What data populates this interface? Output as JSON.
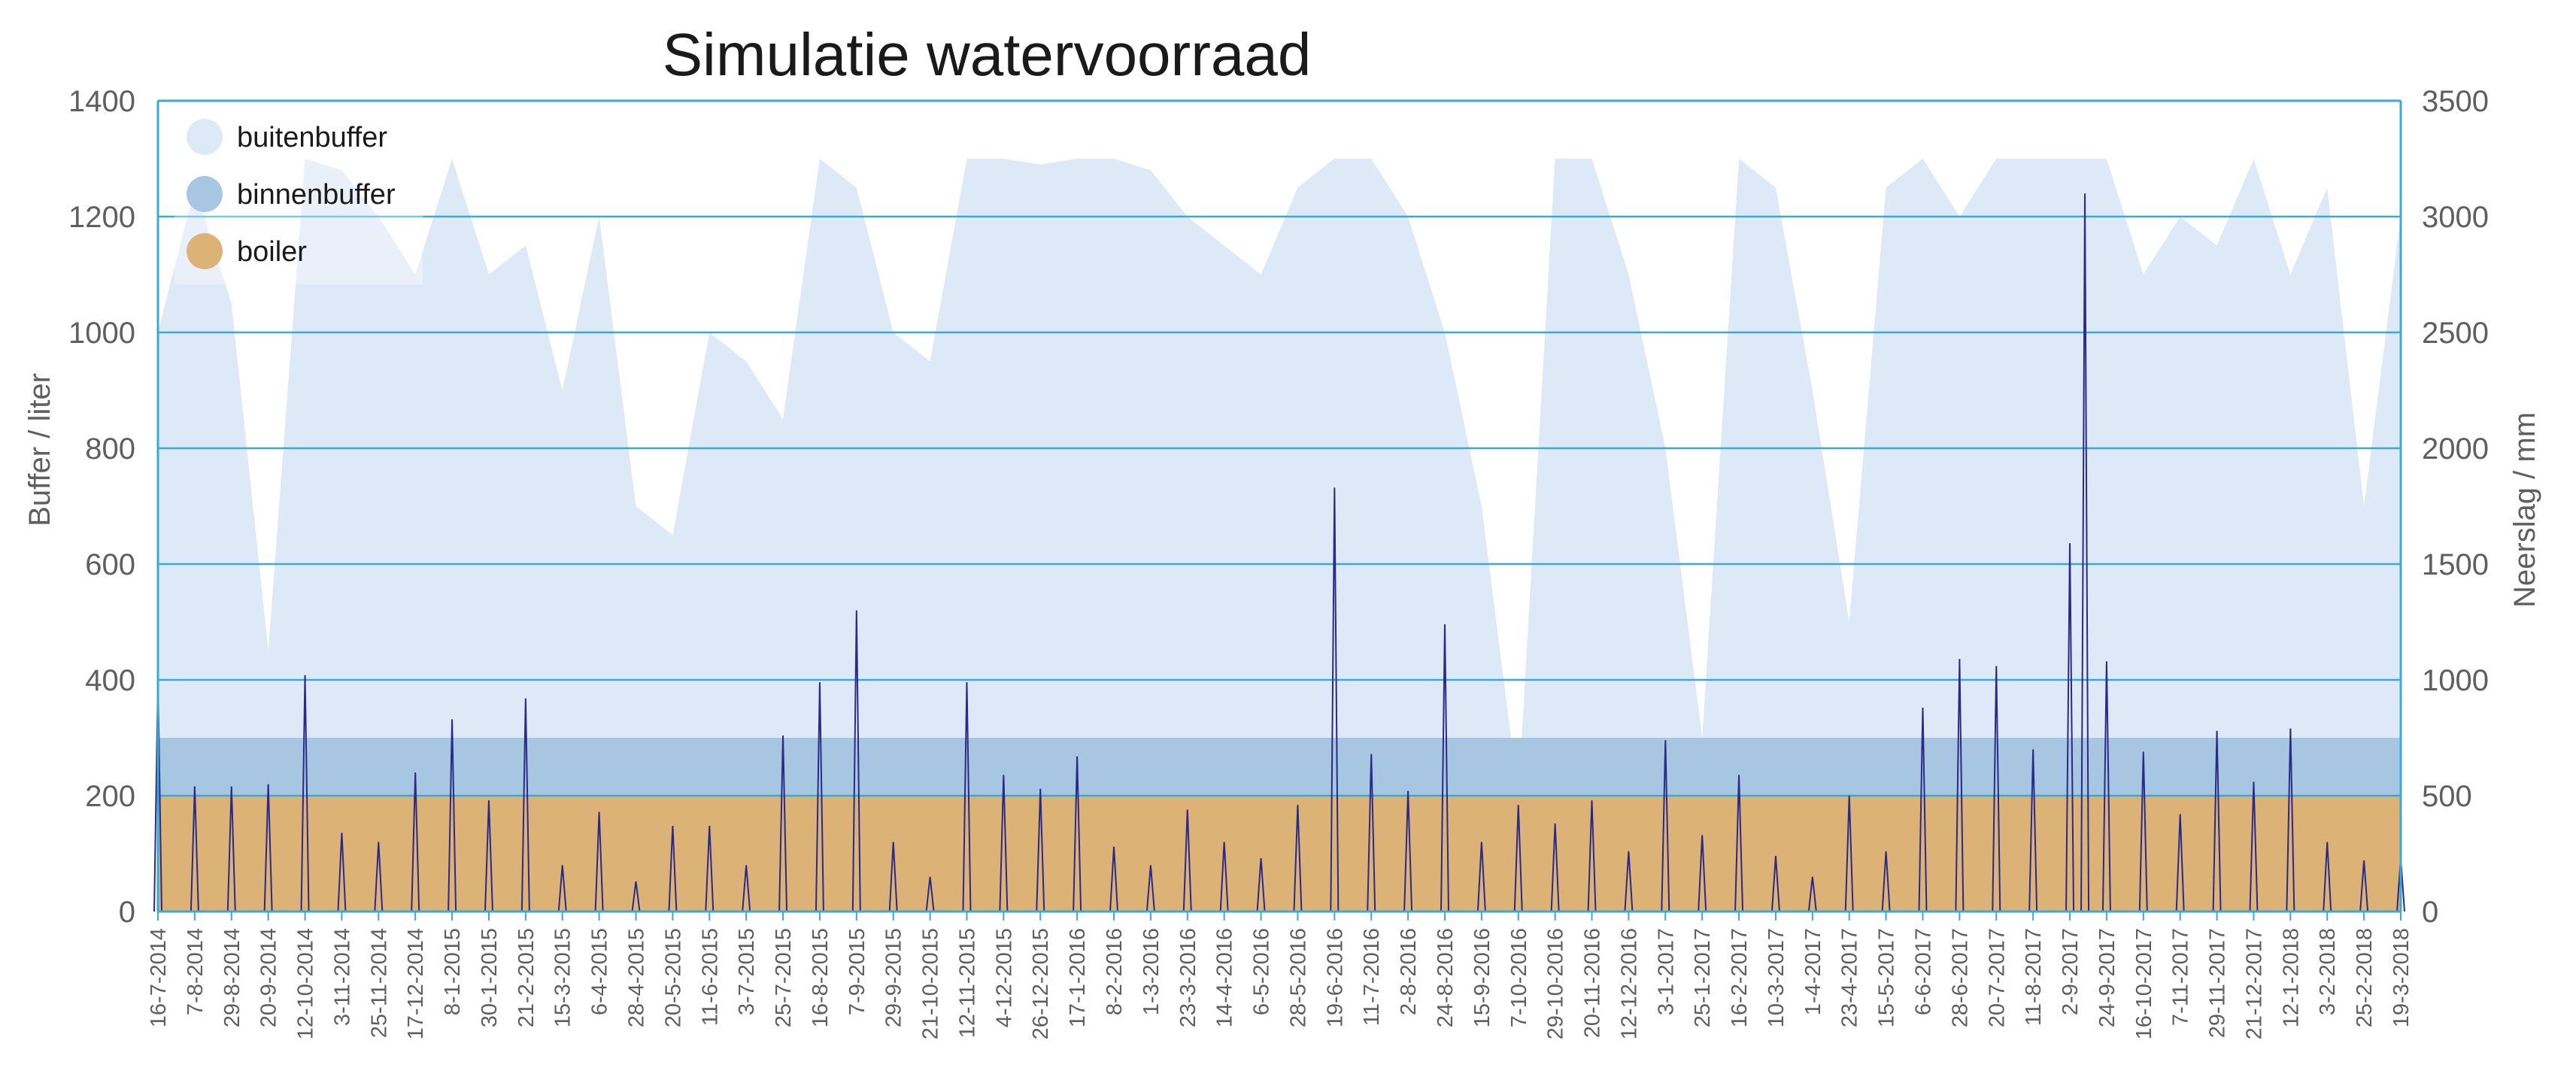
{
  "chart_data": {
    "type": "area",
    "title": "Simulatie watervoorraad",
    "ylabel_left": "Buffer / liter",
    "ylabel_right": "Neerslag / mm",
    "ylim_left": [
      0,
      1400
    ],
    "yticks_left": [
      "0",
      "200",
      "400",
      "600",
      "800",
      "1000",
      "1200",
      "1400"
    ],
    "ylim_right": [
      0,
      3500
    ],
    "yticks_right": [
      "0",
      "500",
      "1000",
      "1500",
      "2000",
      "2500",
      "3000",
      "3500"
    ],
    "grid": "horizontal",
    "legend_position": "top-left",
    "legend": [
      {
        "label": "buitenbuffer",
        "color": "#dde9f6"
      },
      {
        "label": "binnenbuffer",
        "color": "#a7c6e2"
      },
      {
        "label": "boiler",
        "color": "#ddb277"
      }
    ],
    "colors": {
      "axis": "#3aa9d3",
      "gridline": "#3aa9d3",
      "precipitation": "#2b2a86",
      "buitenbuffer": "#dde9f6",
      "binnenbuffer": "#a7c6e2",
      "boiler": "#ddb277"
    },
    "x_tick_labels": [
      "16-7-2014",
      "7-8-2014",
      "29-8-2014",
      "20-9-2014",
      "12-10-2014",
      "3-11-2014",
      "25-11-2014",
      "17-12-2014",
      "8-1-2015",
      "30-1-2015",
      "21-2-2015",
      "15-3-2015",
      "6-4-2015",
      "28-4-2015",
      "20-5-2015",
      "11-6-2015",
      "3-7-2015",
      "25-7-2015",
      "16-8-2015",
      "7-9-2015",
      "29-9-2015",
      "21-10-2015",
      "12-11-2015",
      "4-12-2015",
      "26-12-2015",
      "17-1-2016",
      "8-2-2016",
      "1-3-2016",
      "23-3-2016",
      "14-4-2016",
      "6-5-2016",
      "28-5-2016",
      "19-6-2016",
      "11-7-2016",
      "2-8-2016",
      "24-8-2016",
      "15-9-2016",
      "7-10-2016",
      "29-10-2016",
      "20-11-2016",
      "12-12-2016",
      "3-1-2017",
      "25-1-2017",
      "16-2-2017",
      "10-3-2017",
      "1-4-2017",
      "23-4-2017",
      "15-5-2017",
      "6-6-2017",
      "28-6-2017",
      "20-7-2017",
      "11-8-2017",
      "2-9-2017",
      "24-9-2017",
      "16-10-2017",
      "7-11-2017",
      "29-11-2017",
      "21-12-2017",
      "12-1-2018",
      "3-2-2018",
      "25-2-2018",
      "19-3-2018"
    ],
    "series": [
      {
        "name": "buitenbuffer",
        "units": "liter",
        "axis": "left",
        "x": [
          "16-7-2014",
          "7-8-2014",
          "29-8-2014",
          "20-9-2014",
          "12-10-2014",
          "3-11-2014",
          "25-11-2014",
          "17-12-2014",
          "8-1-2015",
          "30-1-2015",
          "21-2-2015",
          "15-3-2015",
          "6-4-2015",
          "28-4-2015",
          "20-5-2015",
          "11-6-2015",
          "3-7-2015",
          "25-7-2015",
          "16-8-2015",
          "7-9-2015",
          "29-9-2015",
          "21-10-2015",
          "12-11-2015",
          "4-12-2015",
          "26-12-2015",
          "17-1-2016",
          "8-2-2016",
          "1-3-2016",
          "23-3-2016",
          "14-4-2016",
          "6-5-2016",
          "28-5-2016",
          "19-6-2016",
          "11-7-2016",
          "2-8-2016",
          "24-8-2016",
          "15-9-2016",
          "7-10-2016",
          "29-10-2016",
          "20-11-2016",
          "12-12-2016",
          "3-1-2017",
          "25-1-2017",
          "16-2-2017",
          "10-3-2017",
          "1-4-2017",
          "23-4-2017",
          "15-5-2017",
          "6-6-2017",
          "28-6-2017",
          "20-7-2017",
          "11-8-2017",
          "2-9-2017",
          "24-9-2017",
          "16-10-2017",
          "7-11-2017",
          "29-11-2017",
          "21-12-2017",
          "12-1-2018",
          "3-2-2018",
          "25-2-2018",
          "19-3-2018"
        ],
        "values": [
          1000,
          1250,
          1050,
          450,
          1300,
          1280,
          1200,
          1100,
          1300,
          1100,
          1150,
          900,
          1200,
          700,
          650,
          1000,
          950,
          850,
          1300,
          1250,
          1000,
          950,
          1300,
          1300,
          1290,
          1300,
          1300,
          1280,
          1200,
          1150,
          1100,
          1250,
          1300,
          1300,
          1200,
          1000,
          700,
          200,
          1300,
          1300,
          1100,
          800,
          300,
          1300,
          1250,
          900,
          500,
          1250,
          1300,
          1200,
          1300,
          1300,
          1300,
          1300,
          1100,
          1200,
          1150,
          1300,
          1100,
          1250,
          700,
          1200
        ]
      },
      {
        "name": "binnenbuffer",
        "units": "liter",
        "axis": "left",
        "constant": 300
      },
      {
        "name": "boiler",
        "units": "liter",
        "axis": "left",
        "constant": 200
      },
      {
        "name": "neerslag",
        "units": "mm",
        "axis": "right",
        "peaks": [
          {
            "x": "16-7-2014",
            "value": 1000
          },
          {
            "x": "7-8-2014",
            "value": 540
          },
          {
            "x": "29-8-2014",
            "value": 540
          },
          {
            "x": "20-9-2014",
            "value": 550
          },
          {
            "x": "12-10-2014",
            "value": 1020
          },
          {
            "x": "3-11-2014",
            "value": 340
          },
          {
            "x": "25-11-2014",
            "value": 300
          },
          {
            "x": "17-12-2014",
            "value": 600
          },
          {
            "x": "8-1-2015",
            "value": 830
          },
          {
            "x": "30-1-2015",
            "value": 480
          },
          {
            "x": "21-2-2015",
            "value": 920
          },
          {
            "x": "15-3-2015",
            "value": 200
          },
          {
            "x": "6-4-2015",
            "value": 430
          },
          {
            "x": "28-4-2015",
            "value": 130
          },
          {
            "x": "20-5-2015",
            "value": 370
          },
          {
            "x": "11-6-2015",
            "value": 370
          },
          {
            "x": "3-7-2015",
            "value": 200
          },
          {
            "x": "25-7-2015",
            "value": 760
          },
          {
            "x": "16-8-2015",
            "value": 990
          },
          {
            "x": "7-9-2015",
            "value": 1300
          },
          {
            "x": "29-9-2015",
            "value": 300
          },
          {
            "x": "21-10-2015",
            "value": 150
          },
          {
            "x": "12-11-2015",
            "value": 990
          },
          {
            "x": "4-12-2015",
            "value": 590
          },
          {
            "x": "26-12-2015",
            "value": 530
          },
          {
            "x": "17-1-2016",
            "value": 670
          },
          {
            "x": "8-2-2016",
            "value": 280
          },
          {
            "x": "1-3-2016",
            "value": 200
          },
          {
            "x": "23-3-2016",
            "value": 440
          },
          {
            "x": "14-4-2016",
            "value": 300
          },
          {
            "x": "6-5-2016",
            "value": 230
          },
          {
            "x": "28-5-2016",
            "value": 460
          },
          {
            "x": "19-6-2016",
            "value": 1830
          },
          {
            "x": "11-7-2016",
            "value": 680
          },
          {
            "x": "2-8-2016",
            "value": 520
          },
          {
            "x": "24-8-2016",
            "value": 1240
          },
          {
            "x": "15-9-2016",
            "value": 300
          },
          {
            "x": "7-10-2016",
            "value": 460
          },
          {
            "x": "29-10-2016",
            "value": 380
          },
          {
            "x": "20-11-2016",
            "value": 480
          },
          {
            "x": "12-12-2016",
            "value": 260
          },
          {
            "x": "3-1-2017",
            "value": 740
          },
          {
            "x": "25-1-2017",
            "value": 330
          },
          {
            "x": "16-2-2017",
            "value": 590
          },
          {
            "x": "10-3-2017",
            "value": 240
          },
          {
            "x": "1-4-2017",
            "value": 150
          },
          {
            "x": "23-4-2017",
            "value": 500
          },
          {
            "x": "15-5-2017",
            "value": 260
          },
          {
            "x": "6-6-2017",
            "value": 880
          },
          {
            "x": "28-6-2017",
            "value": 1090
          },
          {
            "x": "20-7-2017",
            "value": 1060
          },
          {
            "x": "11-8-2017",
            "value": 700
          },
          {
            "x": "2-9-2017",
            "value": 1590
          },
          {
            "x": "11-9-2017",
            "value": 3100
          },
          {
            "x": "24-9-2017",
            "value": 1080
          },
          {
            "x": "16-10-2017",
            "value": 690
          },
          {
            "x": "7-11-2017",
            "value": 420
          },
          {
            "x": "29-11-2017",
            "value": 780
          },
          {
            "x": "21-12-2017",
            "value": 560
          },
          {
            "x": "12-1-2018",
            "value": 790
          },
          {
            "x": "3-2-2018",
            "value": 300
          },
          {
            "x": "25-2-2018",
            "value": 220
          },
          {
            "x": "19-3-2018",
            "value": 230
          }
        ]
      }
    ]
  }
}
